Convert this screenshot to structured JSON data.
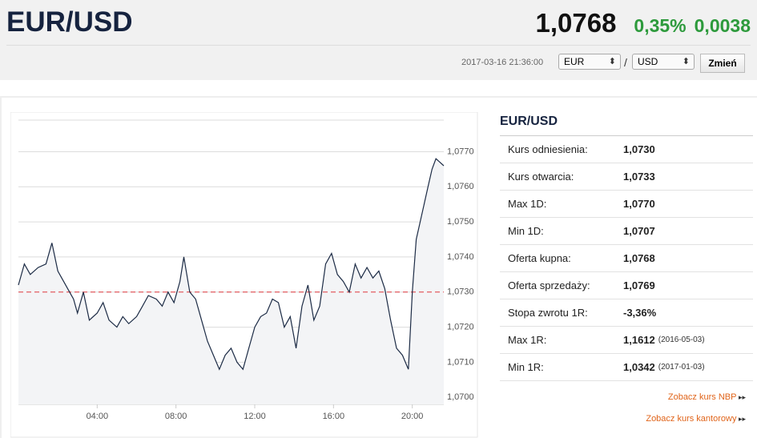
{
  "header": {
    "title": "EUR/USD",
    "price": "1,0768",
    "change_pct": "0,35%",
    "change_abs": "0,0038",
    "timestamp": "2017-03-16 21:36:00"
  },
  "controls": {
    "from": "EUR",
    "separator": "/",
    "to": "USD",
    "button": "Zmień"
  },
  "stats": {
    "title": "EUR/USD",
    "rows": [
      {
        "label": "Kurs odniesienia:",
        "value": "1,0730"
      },
      {
        "label": "Kurs otwarcia:",
        "value": "1,0733"
      },
      {
        "label": "Max 1D:",
        "value": "1,0770"
      },
      {
        "label": "Min 1D:",
        "value": "1,0707"
      },
      {
        "label": "Oferta kupna:",
        "value": "1,0768"
      },
      {
        "label": "Oferta sprzedaży:",
        "value": "1,0769"
      },
      {
        "label": "Stopa zwrotu 1R:",
        "value": "-3,36%"
      },
      {
        "label": "Max 1R:",
        "value": "1,1612",
        "note": "(2016-05-03)"
      },
      {
        "label": "Min 1R:",
        "value": "1,0342",
        "note": "(2017-01-03)"
      }
    ]
  },
  "links": [
    "Zobacz kurs NBP",
    "Zobacz kurs kantorowy"
  ],
  "chart_data": {
    "type": "line",
    "color": "#1c2b45",
    "fill": "#f3f4f6",
    "grid": true,
    "reference_line": {
      "value": 1.073,
      "color": "#e0393e",
      "style": "dashed"
    },
    "x": [
      0.0,
      0.3,
      0.6,
      1.0,
      1.4,
      1.7,
      2.0,
      2.3,
      2.6,
      2.8,
      3.0,
      3.3,
      3.6,
      4.0,
      4.3,
      4.6,
      5.0,
      5.3,
      5.6,
      6.0,
      6.3,
      6.6,
      7.0,
      7.3,
      7.6,
      7.9,
      8.2,
      8.4,
      8.7,
      9.0,
      9.3,
      9.6,
      9.9,
      10.2,
      10.5,
      10.8,
      11.1,
      11.4,
      11.7,
      12.0,
      12.3,
      12.6,
      12.9,
      13.2,
      13.5,
      13.8,
      14.1,
      14.4,
      14.7,
      15.0,
      15.3,
      15.6,
      15.9,
      16.2,
      16.5,
      16.8,
      17.1,
      17.4,
      17.7,
      18.0,
      18.3,
      18.6,
      18.9,
      19.2,
      19.5,
      19.8,
      20.0,
      20.2,
      20.4,
      20.6,
      20.8,
      21.0,
      21.2,
      21.4,
      21.6
    ],
    "values": [
      1.0732,
      1.0738,
      1.0735,
      1.0737,
      1.0738,
      1.0744,
      1.0736,
      1.0733,
      1.073,
      1.0728,
      1.0724,
      1.073,
      1.0722,
      1.0724,
      1.0727,
      1.0722,
      1.072,
      1.0723,
      1.0721,
      1.0723,
      1.0726,
      1.0729,
      1.0728,
      1.0726,
      1.073,
      1.0727,
      1.0733,
      1.074,
      1.073,
      1.0728,
      1.0722,
      1.0716,
      1.0712,
      1.0708,
      1.0712,
      1.0714,
      1.071,
      1.0708,
      1.0714,
      1.072,
      1.0723,
      1.0724,
      1.0728,
      1.0727,
      1.072,
      1.0723,
      1.0714,
      1.0726,
      1.0732,
      1.0722,
      1.0726,
      1.0738,
      1.0741,
      1.0735,
      1.0733,
      1.073,
      1.0738,
      1.0734,
      1.0737,
      1.0734,
      1.0736,
      1.0731,
      1.0722,
      1.0714,
      1.0712,
      1.0708,
      1.073,
      1.0745,
      1.075,
      1.0755,
      1.076,
      1.0765,
      1.0768,
      1.0767,
      1.0766
    ],
    "xlim": [
      0,
      21.6
    ],
    "xticks": [
      {
        "value": 4,
        "label": "04:00"
      },
      {
        "value": 8,
        "label": "08:00"
      },
      {
        "value": 12,
        "label": "12:00"
      },
      {
        "value": 16,
        "label": "16:00"
      },
      {
        "value": 20,
        "label": "20:00"
      }
    ],
    "ylim": [
      1.0698,
      1.0779
    ],
    "yticks": [
      {
        "value": 1.07,
        "label": "1,0700"
      },
      {
        "value": 1.071,
        "label": "1,0710"
      },
      {
        "value": 1.072,
        "label": "1,0720"
      },
      {
        "value": 1.073,
        "label": "1,0730"
      },
      {
        "value": 1.074,
        "label": "1,0740"
      },
      {
        "value": 1.075,
        "label": "1,0750"
      },
      {
        "value": 1.076,
        "label": "1,0760"
      },
      {
        "value": 1.077,
        "label": "1,0770"
      }
    ]
  }
}
